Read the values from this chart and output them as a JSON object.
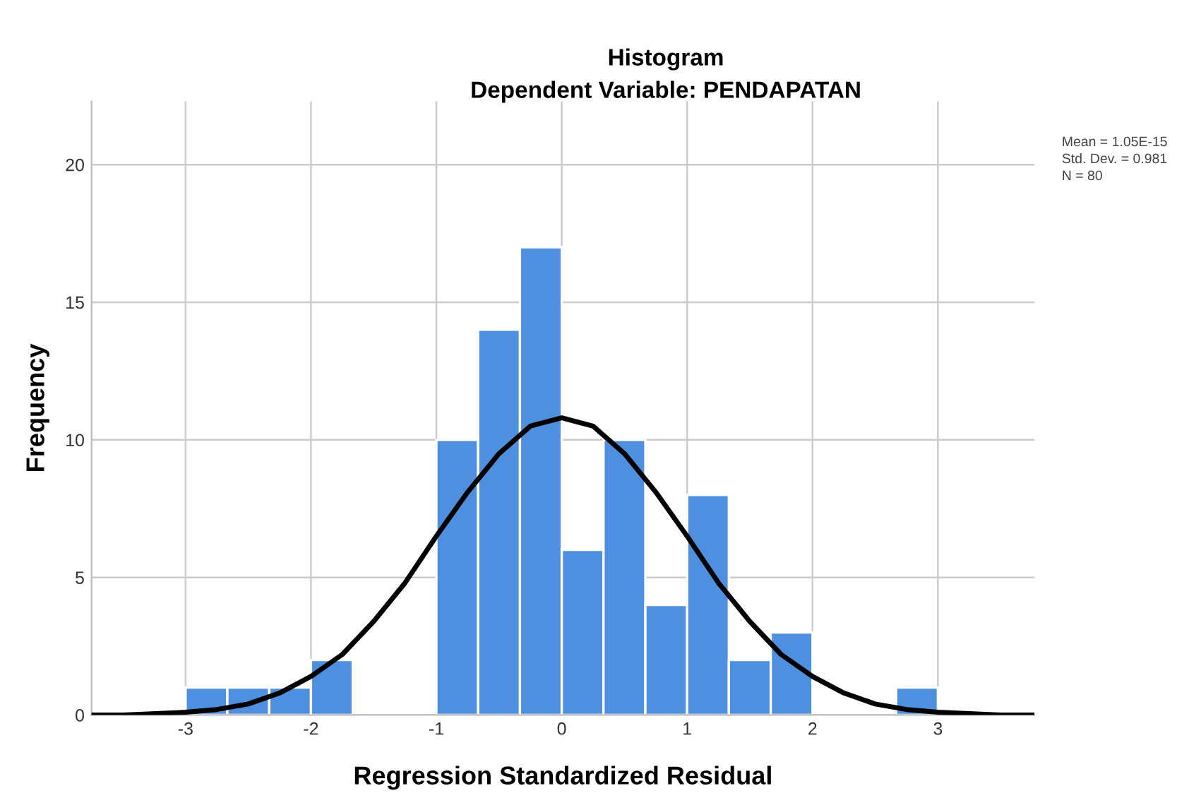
{
  "chart_data": {
    "type": "histogram",
    "title": "Histogram",
    "subtitle": "Dependent Variable: PENDAPATAN",
    "xlabel": "Regression Standardized Residual",
    "ylabel": "Frequency",
    "bins": [
      -3,
      -2.667,
      -2.333,
      -2,
      -1.667,
      -1.333,
      -1,
      -0.667,
      -0.333,
      0,
      0.333,
      0.667,
      1,
      1.333,
      1.667,
      2,
      2.333,
      2.667,
      3
    ],
    "values": [
      1,
      1,
      1,
      2,
      0,
      0,
      10,
      14,
      17,
      6,
      10,
      4,
      8,
      2,
      3,
      0,
      0,
      1
    ],
    "color": "#4f8fe0",
    "series": [
      {
        "type": "line",
        "color": "#000000",
        "x": [
          -3.75,
          -3.5,
          -3,
          -2.75,
          -2.5,
          -2.25,
          -2,
          -1.75,
          -1.5,
          -1.25,
          -1,
          -0.75,
          -0.5,
          -0.25,
          0,
          0.25,
          0.5,
          0.75,
          1,
          1.25,
          1.5,
          1.75,
          2,
          2.25,
          2.5,
          2.75,
          3,
          3.5,
          3.75
        ],
        "values": [
          0,
          0,
          0.1,
          0.2,
          0.4,
          0.8,
          1.4,
          2.2,
          3.4,
          4.8,
          6.5,
          8.1,
          9.5,
          10.5,
          10.8,
          10.5,
          9.5,
          8.1,
          6.5,
          4.8,
          3.4,
          2.2,
          1.4,
          0.8,
          0.4,
          0.2,
          0.1,
          0,
          0
        ]
      }
    ],
    "xlim": [
      -3.75,
      3.77
    ],
    "ylim": [
      0,
      22.3
    ],
    "xticks": [
      -3,
      -2,
      -1,
      0,
      1,
      2,
      3
    ],
    "yticks": [
      0,
      5,
      10,
      15,
      20
    ],
    "grid": true,
    "legend": false,
    "annotations": [
      "Mean = 1.05E-15",
      "Std. Dev. = 0.981",
      "N = 80"
    ]
  }
}
